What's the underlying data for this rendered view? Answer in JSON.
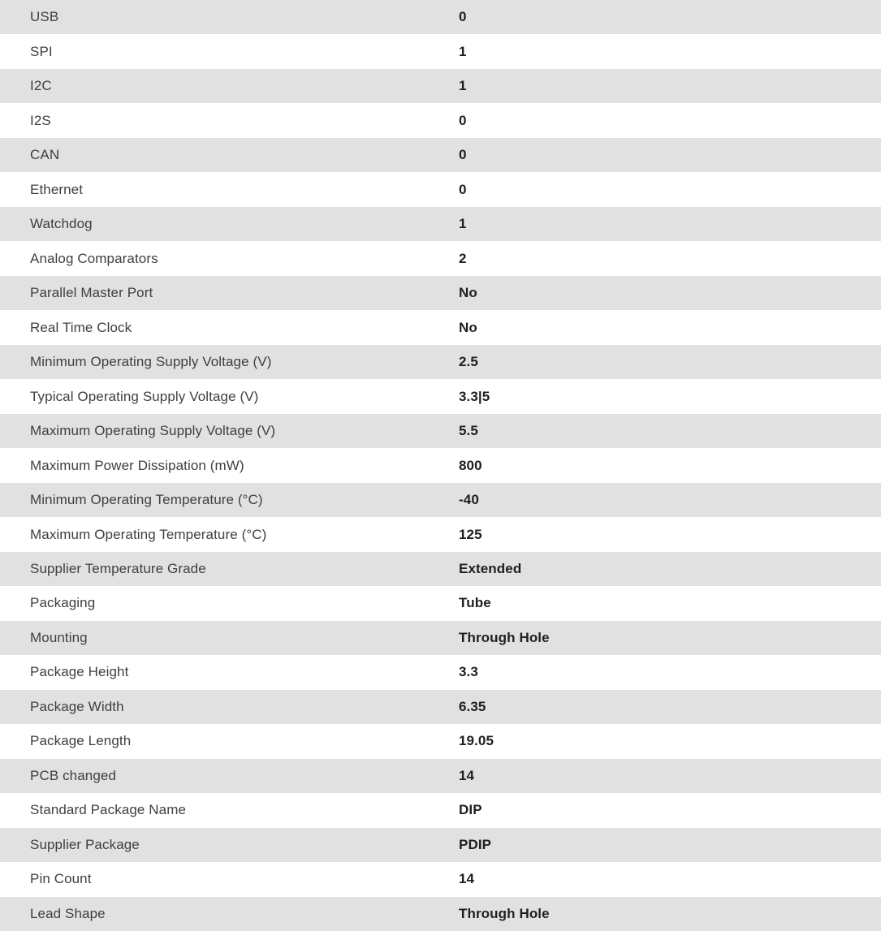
{
  "table": {
    "name": "product-specifications",
    "colors": {
      "row_alt_bg": "#e1e1e1",
      "row_bg": "#ffffff",
      "label_color": "#3f3f3f",
      "value_color": "#1f1f1f"
    },
    "rows": [
      {
        "label": "USB",
        "value": "0"
      },
      {
        "label": "SPI",
        "value": "1"
      },
      {
        "label": "I2C",
        "value": "1"
      },
      {
        "label": "I2S",
        "value": "0"
      },
      {
        "label": "CAN",
        "value": "0"
      },
      {
        "label": "Ethernet",
        "value": "0"
      },
      {
        "label": "Watchdog",
        "value": "1"
      },
      {
        "label": "Analog Comparators",
        "value": "2"
      },
      {
        "label": "Parallel Master Port",
        "value": "No"
      },
      {
        "label": "Real Time Clock",
        "value": "No"
      },
      {
        "label": "Minimum Operating Supply Voltage (V)",
        "value": "2.5"
      },
      {
        "label": "Typical Operating Supply Voltage (V)",
        "value": "3.3|5"
      },
      {
        "label": "Maximum Operating Supply Voltage (V)",
        "value": "5.5"
      },
      {
        "label": "Maximum Power Dissipation (mW)",
        "value": "800"
      },
      {
        "label": "Minimum Operating Temperature (°C)",
        "value": "-40"
      },
      {
        "label": "Maximum Operating Temperature (°C)",
        "value": "125"
      },
      {
        "label": "Supplier Temperature Grade",
        "value": "Extended"
      },
      {
        "label": "Packaging",
        "value": "Tube"
      },
      {
        "label": "Mounting",
        "value": "Through Hole"
      },
      {
        "label": "Package Height",
        "value": "3.3"
      },
      {
        "label": "Package Width",
        "value": "6.35"
      },
      {
        "label": "Package Length",
        "value": "19.05"
      },
      {
        "label": "PCB changed",
        "value": "14"
      },
      {
        "label": "Standard Package Name",
        "value": "DIP"
      },
      {
        "label": "Supplier Package",
        "value": "PDIP"
      },
      {
        "label": "Pin Count",
        "value": "14"
      },
      {
        "label": "Lead Shape",
        "value": "Through Hole"
      }
    ]
  }
}
